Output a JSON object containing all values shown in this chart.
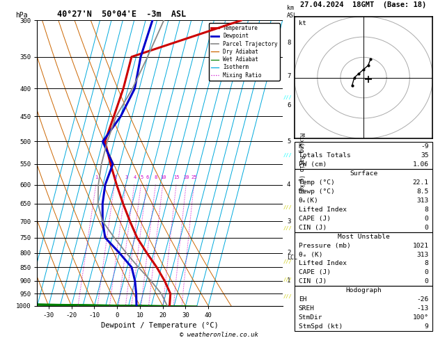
{
  "title_left": "40°27'N  50°04'E  -3m  ASL",
  "title_right": "27.04.2024  18GMT  (Base: 18)",
  "xlabel": "Dewpoint / Temperature (°C)",
  "pressure_levels": [
    300,
    350,
    400,
    450,
    500,
    550,
    600,
    650,
    700,
    750,
    800,
    850,
    900,
    950,
    1000
  ],
  "xmin": -35,
  "xmax": 40,
  "temp_profile_x": [
    23,
    22,
    18,
    13,
    7,
    1,
    -4,
    -9,
    -14,
    -19,
    -24,
    -23,
    -22,
    -22,
    22
  ],
  "temp_profile_p": [
    1000,
    950,
    900,
    850,
    800,
    750,
    700,
    650,
    600,
    550,
    500,
    450,
    400,
    350,
    300
  ],
  "dewp_profile_x": [
    8.5,
    7,
    5,
    2,
    -5,
    -13,
    -16,
    -18,
    -19,
    -18,
    -25,
    -20,
    -17,
    -18,
    -17
  ],
  "dewp_profile_p": [
    1000,
    950,
    900,
    850,
    800,
    750,
    700,
    650,
    600,
    550,
    500,
    450,
    400,
    350,
    300
  ],
  "parcel_x": [
    22,
    18,
    12,
    5,
    -2,
    -9,
    -16,
    -20,
    -22,
    -23,
    -23,
    -22,
    -18,
    -15,
    -12
  ],
  "parcel_p": [
    1000,
    950,
    900,
    850,
    800,
    750,
    700,
    650,
    600,
    550,
    500,
    450,
    400,
    350,
    300
  ],
  "isotherm_temps": [
    -40,
    -35,
    -30,
    -25,
    -20,
    -15,
    -10,
    -5,
    0,
    5,
    10,
    15,
    20,
    25,
    30,
    35,
    40
  ],
  "dry_adiabat_starts": [
    -30,
    -20,
    -10,
    0,
    10,
    20,
    30,
    40,
    50
  ],
  "wet_adiabat_starts": [
    -20,
    -15,
    -10,
    -5,
    0,
    5,
    10,
    15,
    20,
    25,
    30,
    35
  ],
  "skew_factor": 32.5,
  "dry_adiabat_color": "#cc6600",
  "wet_adiabat_color": "#008000",
  "isotherm_color": "#00aadd",
  "mixing_ratio_color": "#cc00cc",
  "temp_color": "#cc0000",
  "dewp_color": "#0000cc",
  "parcel_color": "#888888",
  "km_ticks": [
    1,
    2,
    3,
    4,
    5,
    6,
    7,
    8
  ],
  "km_pressures": [
    900,
    800,
    700,
    600,
    500,
    430,
    380,
    330
  ],
  "mixing_ratio_vals": [
    1,
    2,
    3,
    4,
    5,
    6,
    8,
    10,
    15,
    20,
    25
  ],
  "mixing_ratio_label_p": 590,
  "lcl_label": "LCL",
  "lcl_pressure": 815,
  "info_K": "-9",
  "info_TT": "35",
  "info_PW": "1.06",
  "info_surf_temp": "22.1",
  "info_surf_dewp": "8.5",
  "info_surf_theta": "313",
  "info_surf_li": "8",
  "info_surf_cape": "0",
  "info_surf_cin": "0",
  "info_mu_pres": "1021",
  "info_mu_theta": "313",
  "info_mu_li": "8",
  "info_mu_cape": "0",
  "info_mu_cin": "0",
  "info_EH": "-26",
  "info_SREH": "-13",
  "info_StmDir": "100°",
  "info_StmSpd": "9",
  "legend_items": [
    {
      "label": "Temperature",
      "color": "#cc0000",
      "lw": 2.0,
      "ls": "-"
    },
    {
      "label": "Dewpoint",
      "color": "#0000cc",
      "lw": 2.0,
      "ls": "-"
    },
    {
      "label": "Parcel Trajectory",
      "color": "#888888",
      "lw": 1.2,
      "ls": "-"
    },
    {
      "label": "Dry Adiabat",
      "color": "#cc6600",
      "lw": 0.9,
      "ls": "-"
    },
    {
      "label": "Wet Adiabat",
      "color": "#008000",
      "lw": 0.9,
      "ls": "-"
    },
    {
      "label": "Isotherm",
      "color": "#00aadd",
      "lw": 0.9,
      "ls": "-"
    },
    {
      "label": "Mixing Ratio",
      "color": "#cc00cc",
      "lw": 0.9,
      "ls": ":"
    }
  ],
  "wind_barb_pressures": [
    415,
    530,
    660,
    720,
    830,
    895,
    960
  ],
  "wind_barb_colors": [
    "cyan",
    "cyan",
    "#cccc00",
    "#cccc00",
    "#cccc00",
    "#cccc00",
    "#cccc00"
  ]
}
